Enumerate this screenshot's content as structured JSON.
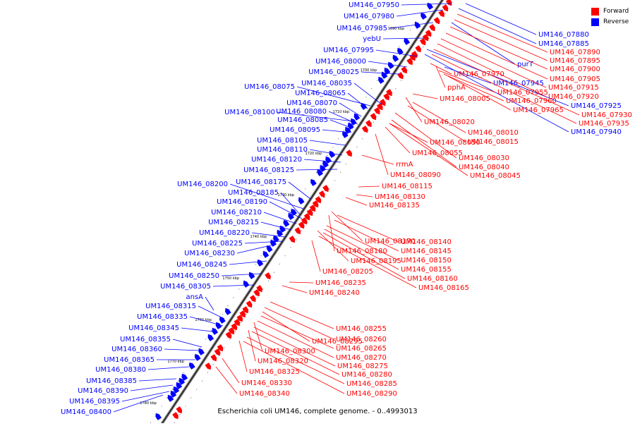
{
  "legend": {
    "forward_label": "Forward",
    "reverse_label": "Reverse",
    "forward_color": "#ff0000",
    "reverse_color": "#0000ff"
  },
  "caption": "Escherichia coli UM146, complete genome. - 0..4993013",
  "scale_ticks": [
    "1690 kbp",
    "1700 kbp",
    "1710 kbp",
    "1720 kbp",
    "1730 kbp",
    "1740 kbp",
    "1750 kbp",
    "1760 kbp",
    "1770 kbp",
    "1780 kbp"
  ],
  "reverse_genes": [
    "UM146_07950",
    "UM146_07980",
    "UM146_07985",
    "yebU",
    "UM146_07995",
    "UM146_08000",
    "UM146_08025",
    "UM146_08035",
    "UM146_08075",
    "UM146_08065",
    "UM146_08070",
    "UM146_08100",
    "UM146_08080",
    "UM146_08085",
    "UM146_08095",
    "UM146_08105",
    "UM146_08110",
    "UM146_08120",
    "UM146_08125",
    "UM146_08175",
    "UM146_08200",
    "UM146_08185",
    "UM146_08190",
    "UM146_08210",
    "UM146_08215",
    "UM146_08220",
    "UM146_08225",
    "UM146_08230",
    "UM146_08245",
    "UM146_08250",
    "UM146_08305",
    "ansA",
    "UM146_08315",
    "UM146_08335",
    "UM146_08345",
    "UM146_08355",
    "UM146_08360",
    "UM146_08365",
    "UM146_08380",
    "UM146_08385",
    "UM146_08390",
    "UM146_08395",
    "UM146_08400",
    "UM146_07880",
    "UM146_07885",
    "purT",
    "UM146_07945",
    "UM146_07925",
    "UM146_07940"
  ],
  "forward_genes": [
    "UM146_07890",
    "UM146_07895",
    "UM146_07900",
    "UM146_07905",
    "UM146_07915",
    "UM146_07920",
    "UM146_07930",
    "UM146_07935",
    "UM146_07970",
    "pphA",
    "UM146_07955",
    "UM146_07960",
    "UM146_07965",
    "UM146_08005",
    "UM146_08020",
    "UM146_08010",
    "UM146_08015",
    "UM146_08050",
    "UM146_08055",
    "rrmA",
    "UM146_08030",
    "UM146_08040",
    "UM146_08045",
    "UM146_08090",
    "UM146_08115",
    "UM146_08130",
    "UM146_08135",
    "UM146_08140",
    "UM146_08145",
    "UM146_08170",
    "UM146_08180",
    "UM146_08150",
    "UM146_08195",
    "UM146_08155",
    "UM146_08205",
    "UM146_08160",
    "UM146_08165",
    "UM146_08235",
    "UM146_08240",
    "UM146_08255",
    "UM146_08260",
    "UM146_08295",
    "UM146_08265",
    "UM146_08300",
    "UM146_08270",
    "UM146_08320",
    "UM146_08275",
    "UM146_08325",
    "UM146_08280",
    "UM146_08285",
    "UM146_08330",
    "UM146_08290",
    "UM146_08340"
  ]
}
